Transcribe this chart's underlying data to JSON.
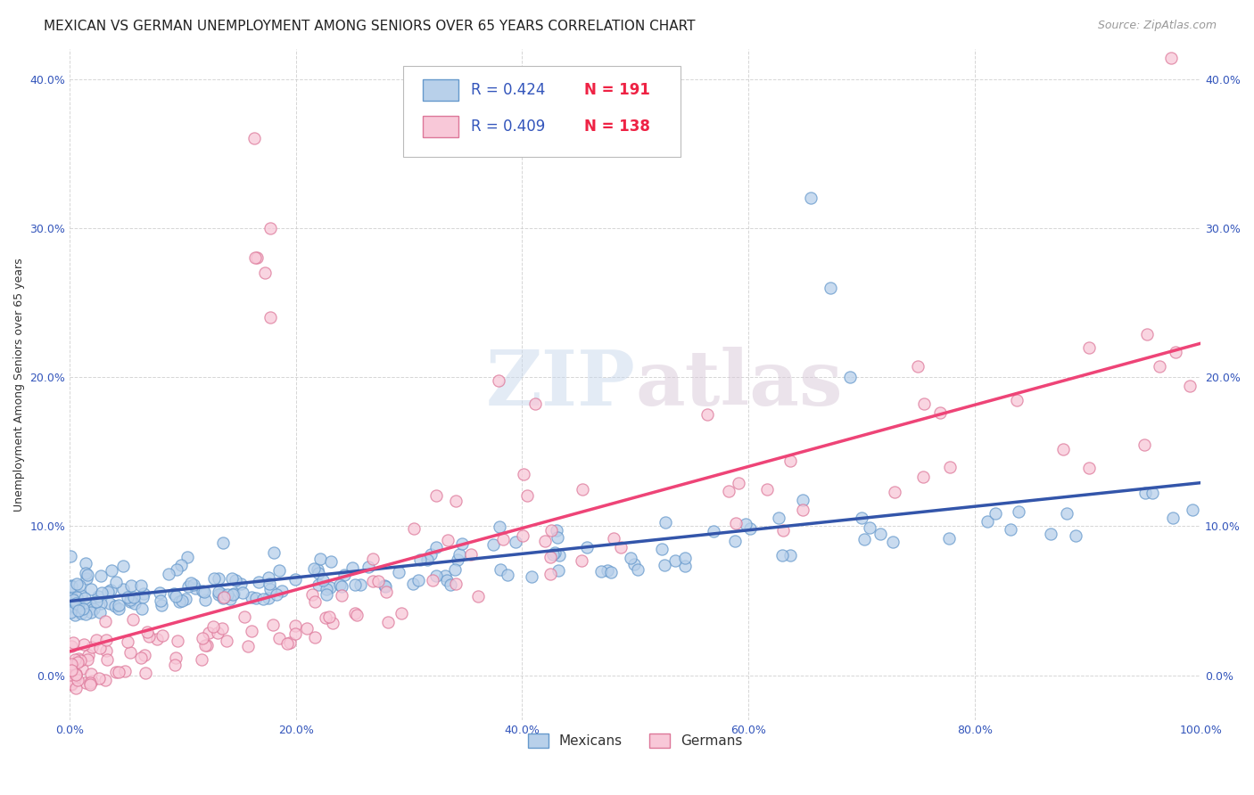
{
  "title": "MEXICAN VS GERMAN UNEMPLOYMENT AMONG SENIORS OVER 65 YEARS CORRELATION CHART",
  "source": "Source: ZipAtlas.com",
  "ylabel": "Unemployment Among Seniors over 65 years",
  "xlim": [
    0.0,
    1.0
  ],
  "ylim": [
    -0.03,
    0.42
  ],
  "xticks": [
    0.0,
    0.2,
    0.4,
    0.6,
    0.8,
    1.0
  ],
  "xticklabels": [
    "0.0%",
    "20.0%",
    "40.0%",
    "60.0%",
    "80.0%",
    "100.0%"
  ],
  "yticks": [
    0.0,
    0.1,
    0.2,
    0.3,
    0.4
  ],
  "yticklabels": [
    "0.0%",
    "10.0%",
    "20.0%",
    "30.0%",
    "40.0%"
  ],
  "mexicans_fill_color": "#b8d0ea",
  "mexicans_edge_color": "#6699cc",
  "mexicans_line_color": "#3355aa",
  "german_fill_color": "#f8c8d8",
  "german_edge_color": "#dd7799",
  "german_line_color": "#ee4477",
  "R_mexicans": 0.424,
  "N_mexicans": 191,
  "R_german": 0.409,
  "N_german": 138,
  "legend_label_mexicans": "Mexicans",
  "legend_label_german": "Germans",
  "watermark_zip": "ZIP",
  "watermark_atlas": "atlas",
  "background_color": "#ffffff",
  "grid_color": "#cccccc",
  "title_fontsize": 11,
  "axis_label_fontsize": 9,
  "tick_fontsize": 9,
  "source_fontsize": 9
}
